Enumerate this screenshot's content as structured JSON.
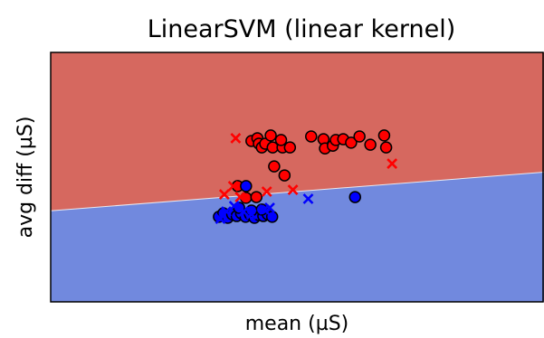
{
  "chart_data": {
    "type": "scatter",
    "title": "LinearSVM (linear kernel)",
    "xlabel": "mean (µS)",
    "ylabel": "avg diff (µS)",
    "xlim": [
      0,
      100
    ],
    "ylim": [
      0,
      100
    ],
    "ticks_visible": false,
    "grid": false,
    "legend": "none",
    "decision_boundary": {
      "left": {
        "x": 0,
        "y": 36.5
      },
      "right": {
        "x": 100,
        "y": 52
      },
      "region_above_color": "#d6685f",
      "region_below_color": "#7189de"
    },
    "colors": {
      "class_positive": "#ff0000",
      "class_negative": "#0000ff"
    },
    "series": [
      {
        "marker": "circle",
        "color": "#ff0000",
        "points": [
          [
            40.7,
            64.5
          ],
          [
            41.9,
            65.6
          ],
          [
            42.2,
            63.4
          ],
          [
            42.8,
            61.9
          ],
          [
            43.5,
            63.4
          ],
          [
            44.6,
            66.7
          ],
          [
            45.0,
            61.9
          ],
          [
            45.3,
            54.3
          ],
          [
            47.0,
            61.9
          ],
          [
            46.7,
            64.9
          ],
          [
            47.4,
            50.7
          ],
          [
            48.5,
            61.9
          ],
          [
            52.8,
            66.3
          ],
          [
            55.3,
            65.2
          ],
          [
            55.6,
            61.5
          ],
          [
            57.2,
            62.6
          ],
          [
            57.8,
            64.9
          ],
          [
            59.3,
            65.2
          ],
          [
            60.9,
            63.8
          ],
          [
            62.6,
            66.3
          ],
          [
            64.8,
            63.0
          ],
          [
            67.6,
            66.7
          ],
          [
            68.0,
            61.9
          ],
          [
            37.9,
            46.4
          ],
          [
            39.6,
            41.7
          ],
          [
            41.7,
            42.0
          ]
        ]
      },
      {
        "marker": "circle",
        "color": "#0000ff",
        "points": [
          [
            34.1,
            34.1
          ],
          [
            35.0,
            35.5
          ],
          [
            35.9,
            33.7
          ],
          [
            36.8,
            35.1
          ],
          [
            37.7,
            34.4
          ],
          [
            38.6,
            35.5
          ],
          [
            39.5,
            34.1
          ],
          [
            40.4,
            35.1
          ],
          [
            41.3,
            33.7
          ],
          [
            42.2,
            34.8
          ],
          [
            43.1,
            34.4
          ],
          [
            44.0,
            35.1
          ],
          [
            44.9,
            34.1
          ],
          [
            38.2,
            37.7
          ],
          [
            40.7,
            36.6
          ],
          [
            42.8,
            37.0
          ],
          [
            39.6,
            46.4
          ],
          [
            61.7,
            42.0
          ]
        ]
      },
      {
        "marker": "x",
        "color": "#ff0000",
        "points": [
          [
            37.5,
            65.6
          ],
          [
            35.2,
            43.1
          ],
          [
            37.0,
            46.4
          ],
          [
            38.4,
            42.0
          ],
          [
            43.8,
            44.2
          ],
          [
            49.1,
            44.9
          ],
          [
            69.2,
            55.4
          ]
        ]
      },
      {
        "marker": "x",
        "color": "#0000ff",
        "points": [
          [
            34.4,
            33.3
          ],
          [
            35.6,
            36.2
          ],
          [
            37.2,
            38.4
          ],
          [
            39.1,
            36.2
          ],
          [
            40.7,
            35.1
          ],
          [
            43.3,
            37.0
          ],
          [
            44.4,
            37.7
          ],
          [
            52.2,
            41.3
          ]
        ]
      }
    ]
  }
}
